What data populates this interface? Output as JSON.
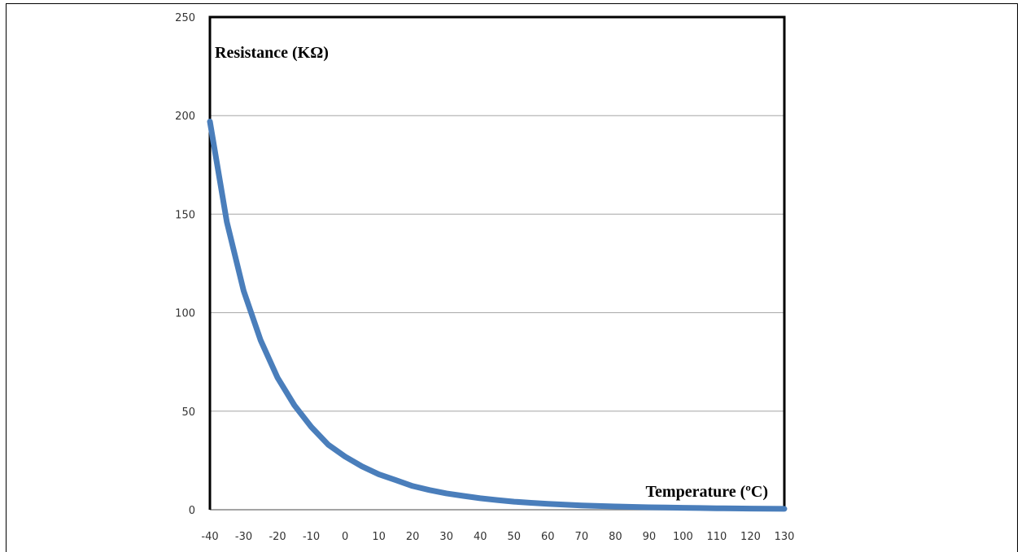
{
  "chart_data": {
    "type": "line",
    "xlabel": "Temperature (ºC)",
    "ylabel": "Resistance (KΩ)",
    "xlim": [
      -40,
      130
    ],
    "ylim": [
      0,
      250
    ],
    "x_ticks": [
      "-40",
      "-30",
      "-20",
      "-10",
      "0",
      "10",
      "20",
      "30",
      "40",
      "50",
      "60",
      "70",
      "80",
      "90",
      "100",
      "110",
      "120",
      "130"
    ],
    "y_ticks": [
      "0",
      "50",
      "100",
      "150",
      "200",
      "250"
    ],
    "grid": "horizontal",
    "legend": "none",
    "series": [
      {
        "color": "#4a7ebb",
        "x": [
          -40,
          -35,
          -30,
          -25,
          -20,
          -15,
          -10,
          -5,
          0,
          5,
          10,
          15,
          20,
          25,
          30,
          35,
          40,
          45,
          50,
          55,
          60,
          65,
          70,
          75,
          80,
          85,
          90,
          95,
          100,
          105,
          110,
          115,
          120,
          125,
          130
        ],
        "y": [
          197,
          146,
          111,
          86,
          67,
          53,
          42,
          33,
          27,
          22,
          18,
          15,
          12,
          10,
          8.3,
          7,
          5.8,
          4.9,
          4.1,
          3.5,
          3,
          2.6,
          2.2,
          1.9,
          1.65,
          1.45,
          1.25,
          1.1,
          0.97,
          0.85,
          0.75,
          0.67,
          0.59,
          0.53,
          0.47
        ]
      }
    ]
  }
}
